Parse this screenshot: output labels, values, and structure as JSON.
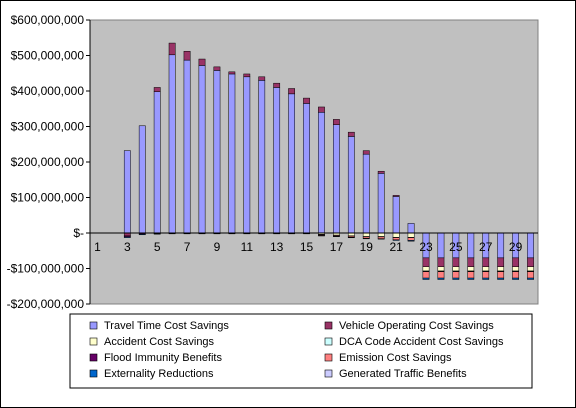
{
  "chart_data": {
    "type": "bar",
    "stacked": true,
    "title": "",
    "xlabel": "",
    "ylabel": "",
    "ylim": [
      -200000000,
      600000000
    ],
    "y_tick_values": [
      -200000000,
      -100000000,
      0,
      100000000,
      200000000,
      300000000,
      400000000,
      500000000,
      600000000
    ],
    "y_tick_labels": [
      "-$200,000,000",
      "-$100,000,000",
      "$-",
      "$100,000,000",
      "$200,000,000",
      "$300,000,000",
      "$400,000,000",
      "$500,000,000",
      "$600,000,000"
    ],
    "categories": [
      "1",
      "2",
      "3",
      "4",
      "5",
      "6",
      "7",
      "8",
      "9",
      "10",
      "11",
      "12",
      "13",
      "14",
      "15",
      "16",
      "17",
      "18",
      "19",
      "20",
      "21",
      "22",
      "23",
      "24",
      "25",
      "26",
      "27",
      "28",
      "29",
      "30"
    ],
    "x_tick_labels_shown": [
      "1",
      "3",
      "5",
      "7",
      "9",
      "11",
      "13",
      "15",
      "17",
      "19",
      "21",
      "23",
      "25",
      "27",
      "29"
    ],
    "grid": false,
    "plot_background": "#c0c0c0",
    "legend_position": "bottom",
    "series": [
      {
        "name": "Travel Time Cost Savings",
        "color": "#9999ff",
        "values": [
          0,
          0,
          232000000,
          302000000,
          398000000,
          502000000,
          487000000,
          472000000,
          458000000,
          448000000,
          440000000,
          430000000,
          410000000,
          392000000,
          365000000,
          340000000,
          305000000,
          272000000,
          222000000,
          168000000,
          103000000,
          27000000,
          -70000000,
          -70000000,
          -70000000,
          -70000000,
          -70000000,
          -70000000,
          -70000000,
          -70000000
        ]
      },
      {
        "name": "Vehicle Operating Cost Savings",
        "color": "#993366",
        "values": [
          0,
          0,
          -8000000,
          0,
          12000000,
          33000000,
          25000000,
          18000000,
          10000000,
          6000000,
          8000000,
          10000000,
          12000000,
          15000000,
          15000000,
          15000000,
          15000000,
          12000000,
          10000000,
          6000000,
          3000000,
          0,
          -25000000,
          -25000000,
          -25000000,
          -25000000,
          -25000000,
          -25000000,
          -25000000,
          -25000000
        ]
      },
      {
        "name": "Accident Cost Savings",
        "color": "#ffffcc",
        "values": [
          0,
          0,
          0,
          0,
          0,
          0,
          0,
          0,
          0,
          0,
          0,
          0,
          0,
          0,
          0,
          -4000000,
          -6000000,
          -8000000,
          -10000000,
          -10000000,
          -12000000,
          -12000000,
          -12000000,
          -12000000,
          -12000000,
          -12000000,
          -12000000,
          -12000000,
          -12000000,
          -12000000
        ]
      },
      {
        "name": "DCA Code Accident Cost Savings",
        "color": "#ccffff",
        "values": [
          0,
          0,
          0,
          0,
          0,
          0,
          0,
          0,
          0,
          0,
          0,
          0,
          0,
          0,
          0,
          0,
          0,
          0,
          0,
          0,
          0,
          0,
          -1000000,
          -1000000,
          -1000000,
          -1000000,
          -1000000,
          -1000000,
          -1000000,
          -1000000
        ]
      },
      {
        "name": "Flood Immunity Benefits",
        "color": "#660066",
        "values": [
          0,
          0,
          -3000000,
          -3000000,
          -2000000,
          -1000000,
          -1000000,
          -1000000,
          -1000000,
          -1000000,
          -1000000,
          -1000000,
          -1000000,
          -1000000,
          -1000000,
          -1000000,
          -1000000,
          -1000000,
          -1000000,
          -1000000,
          -1000000,
          -1000000,
          -1000000,
          -1000000,
          -1000000,
          -1000000,
          -1000000,
          -1000000,
          -1000000,
          -1000000
        ]
      },
      {
        "name": "Emission Cost Savings",
        "color": "#ff8080",
        "values": [
          0,
          0,
          0,
          0,
          0,
          0,
          0,
          0,
          0,
          0,
          0,
          0,
          0,
          0,
          0,
          -2000000,
          -2000000,
          -3000000,
          -4000000,
          -5000000,
          -6000000,
          -8000000,
          -18000000,
          -18000000,
          -18000000,
          -18000000,
          -18000000,
          -18000000,
          -18000000,
          -18000000
        ]
      },
      {
        "name": "Externality Reductions",
        "color": "#0066cc",
        "values": [
          0,
          0,
          -2000000,
          -2000000,
          -1000000,
          -1000000,
          -1000000,
          -1000000,
          -1000000,
          -1000000,
          -1000000,
          -1000000,
          -1000000,
          -1000000,
          -1000000,
          -1000000,
          -1000000,
          -1000000,
          -1000000,
          -1000000,
          -2000000,
          -2000000,
          -4000000,
          -4000000,
          -4000000,
          -4000000,
          -4000000,
          -4000000,
          -4000000,
          -4000000
        ]
      },
      {
        "name": "Generated Traffic Benefits",
        "color": "#ccccff",
        "values": [
          0,
          0,
          0,
          0,
          0,
          0,
          0,
          0,
          0,
          0,
          0,
          0,
          0,
          0,
          0,
          0,
          0,
          0,
          0,
          0,
          0,
          0,
          0,
          0,
          0,
          0,
          0,
          0,
          0,
          0
        ]
      }
    ]
  }
}
